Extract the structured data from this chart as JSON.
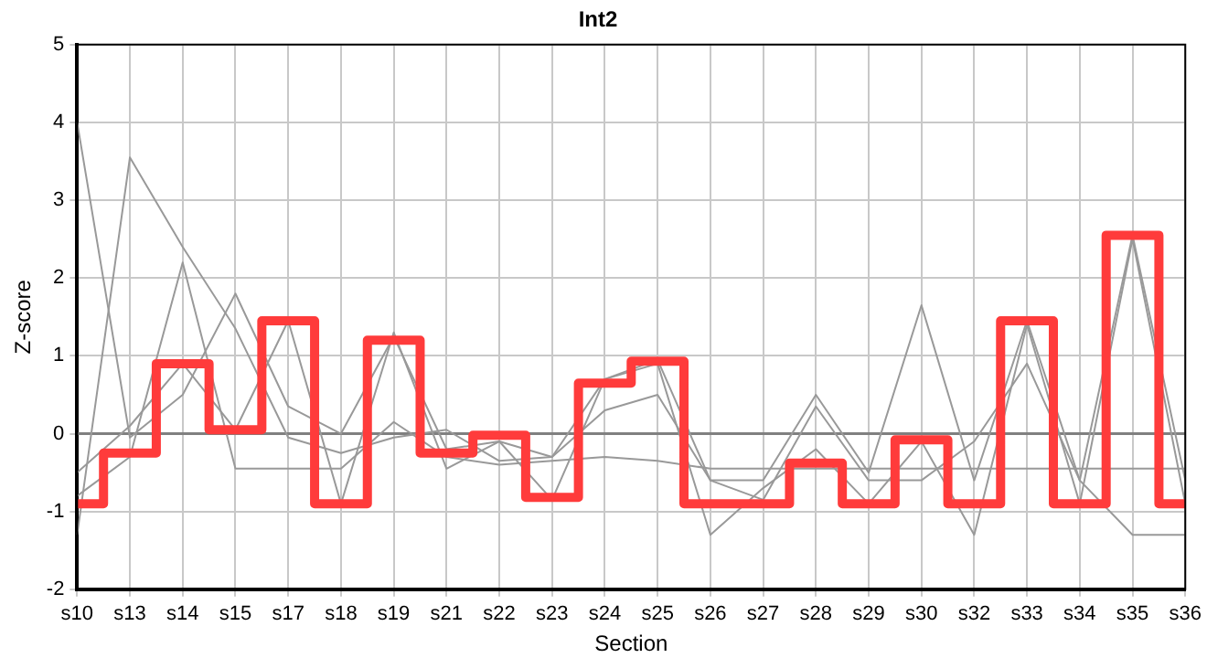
{
  "chart_data": {
    "type": "line",
    "title": "Int2",
    "xlabel": "Section",
    "ylabel": "Z-score",
    "categories": [
      "s10",
      "s13",
      "s14",
      "s15",
      "s17",
      "s18",
      "s19",
      "s21",
      "s22",
      "s23",
      "s24",
      "s25",
      "s26",
      "s27",
      "s28",
      "s29",
      "s30",
      "s32",
      "s33",
      "s34",
      "s35",
      "s36"
    ],
    "ylim": [
      -2,
      5
    ],
    "yticks": [
      -2,
      -1,
      0,
      1,
      2,
      3,
      4,
      5
    ],
    "grid": true,
    "legend": false,
    "marker": "none",
    "ref_lines": [
      {
        "axis": "y",
        "value": 0,
        "color": "#808080"
      }
    ],
    "series": [
      {
        "type": "line",
        "color": "#999999",
        "values": [
          4.0,
          -0.05,
          0.5,
          1.8,
          0.35,
          0.0,
          1.25,
          -0.2,
          -0.1,
          -0.3,
          0.7,
          0.95,
          -0.6,
          -0.6,
          0.5,
          -0.5,
          1.65,
          -0.6,
          1.45,
          -0.6,
          2.55,
          -0.6
        ]
      },
      {
        "type": "line",
        "color": "#999999",
        "values": [
          -1.3,
          3.55,
          2.4,
          1.35,
          -0.05,
          -0.25,
          -0.05,
          0.05,
          -0.35,
          -0.3,
          0.3,
          0.5,
          -0.6,
          -0.85,
          0.35,
          -0.6,
          -0.6,
          -0.1,
          0.9,
          -0.6,
          -1.3,
          -1.3
        ]
      },
      {
        "type": "line",
        "color": "#999999",
        "values": [
          -0.8,
          -0.3,
          2.2,
          -0.45,
          -0.45,
          -0.45,
          0.15,
          -0.3,
          -0.4,
          -0.35,
          -0.3,
          -0.35,
          -0.45,
          -0.45,
          -0.45,
          -0.45,
          -0.45,
          -0.45,
          -0.45,
          -0.45,
          -0.45,
          -0.45
        ]
      },
      {
        "type": "line",
        "color": "#999999",
        "values": [
          -0.5,
          0.1,
          0.9,
          0.05,
          1.45,
          -0.9,
          1.3,
          -0.45,
          -0.1,
          -0.85,
          0.7,
          0.9,
          -1.3,
          -0.7,
          -0.2,
          -0.9,
          -0.1,
          -1.3,
          1.4,
          -0.9,
          2.5,
          -0.9
        ]
      },
      {
        "type": "step",
        "color": "#ff3b3b",
        "values": [
          -0.9,
          -0.25,
          0.9,
          0.05,
          1.45,
          -0.9,
          1.2,
          -0.25,
          -0.02,
          -0.82,
          0.65,
          0.93,
          -0.9,
          -0.9,
          -0.38,
          -0.9,
          -0.08,
          -0.9,
          1.45,
          -0.9,
          2.55,
          -0.9
        ]
      }
    ]
  }
}
